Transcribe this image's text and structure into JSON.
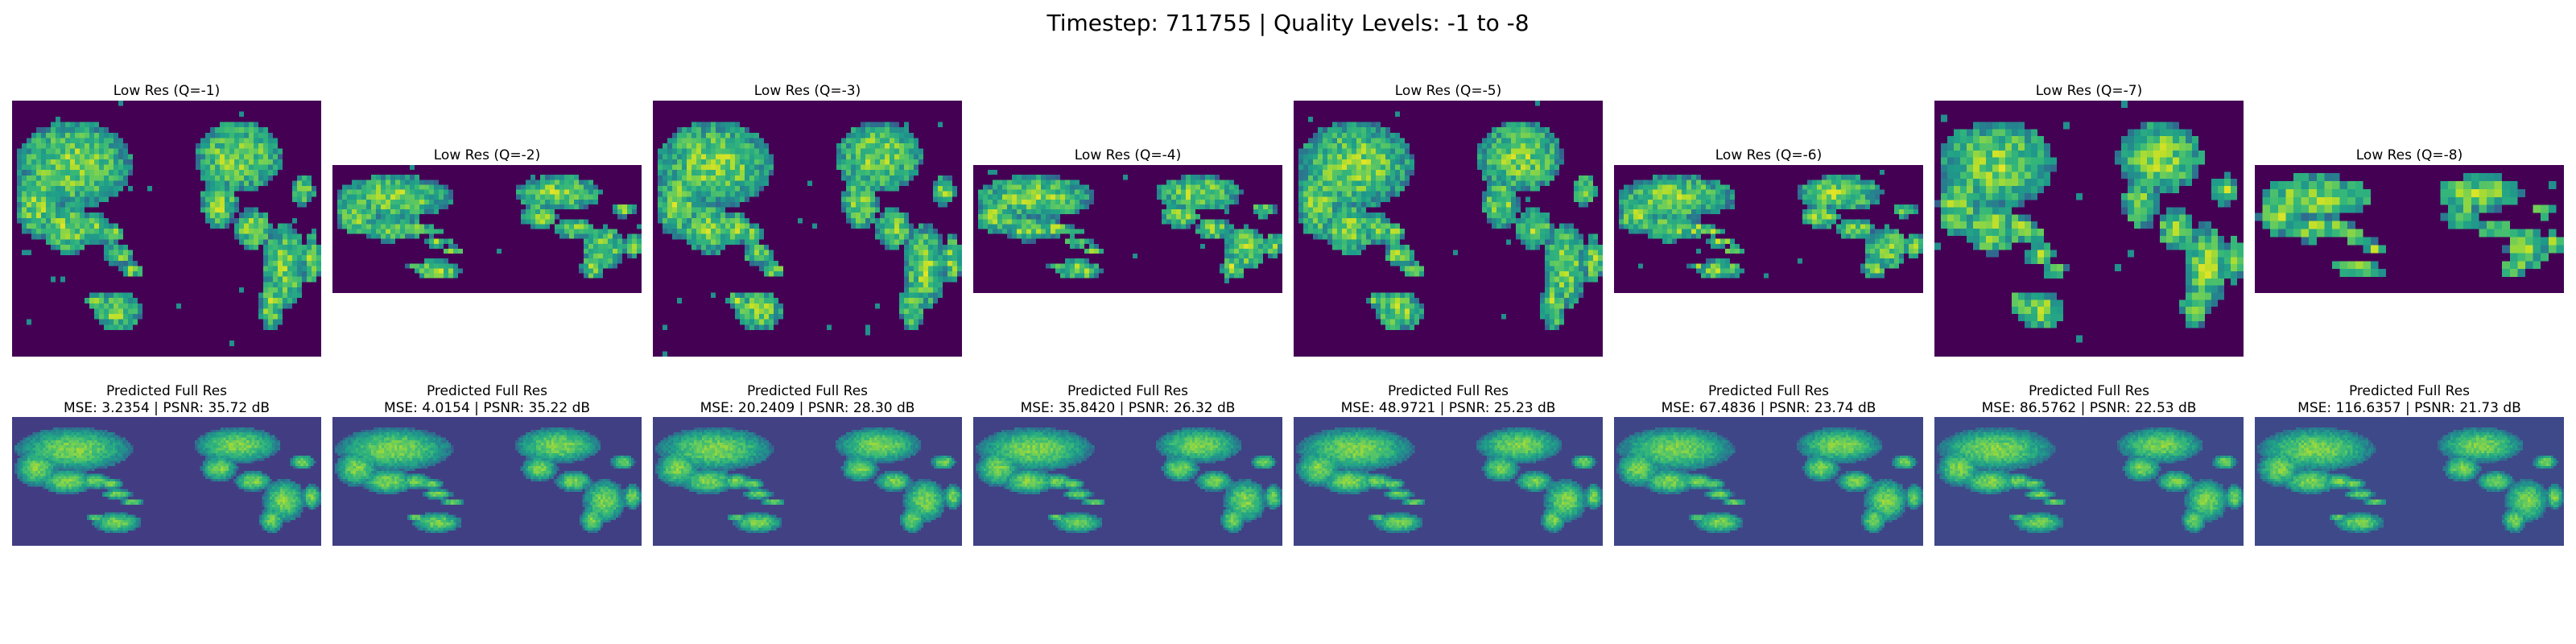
{
  "figure": {
    "title": "Timestep: 711755 | Quality Levels: -1 to -8",
    "colormap": "viridis",
    "background": "#ffffff"
  },
  "panels": [
    {
      "row": "low_res",
      "title": "Low Res (Q=-1)",
      "quality": -1,
      "grid": [
        64,
        48
      ]
    },
    {
      "row": "low_res",
      "title": "Low Res (Q=-2)",
      "quality": -2,
      "grid": [
        64,
        26
      ]
    },
    {
      "row": "low_res",
      "title": "Low Res (Q=-3)",
      "quality": -3,
      "grid": [
        64,
        48
      ]
    },
    {
      "row": "low_res",
      "title": "Low Res (Q=-4)",
      "quality": -4,
      "grid": [
        64,
        26
      ]
    },
    {
      "row": "low_res",
      "title": "Low Res (Q=-5)",
      "quality": -5,
      "grid": [
        64,
        48
      ]
    },
    {
      "row": "low_res",
      "title": "Low Res (Q=-6)",
      "quality": -6,
      "grid": [
        64,
        26
      ]
    },
    {
      "row": "low_res",
      "title": "Low Res (Q=-7)",
      "quality": -7,
      "grid": [
        48,
        36
      ]
    },
    {
      "row": "low_res",
      "title": "Low Res (Q=-8)",
      "quality": -8,
      "grid": [
        40,
        16
      ]
    },
    {
      "row": "predicted",
      "title": "Predicted Full Res",
      "metrics": "MSE: 3.2354 | PSNR: 35.72 dB",
      "grid": [
        120,
        50
      ]
    },
    {
      "row": "predicted",
      "title": "Predicted Full Res",
      "metrics": "MSE: 4.0154 | PSNR: 35.22 dB",
      "grid": [
        120,
        50
      ]
    },
    {
      "row": "predicted",
      "title": "Predicted Full Res",
      "metrics": "MSE: 20.2409 | PSNR: 28.30 dB",
      "grid": [
        120,
        50
      ]
    },
    {
      "row": "predicted",
      "title": "Predicted Full Res",
      "metrics": "MSE: 35.8420 | PSNR: 26.32 dB",
      "grid": [
        120,
        50
      ]
    },
    {
      "row": "predicted",
      "title": "Predicted Full Res",
      "metrics": "MSE: 48.9721 | PSNR: 25.23 dB",
      "grid": [
        120,
        50
      ]
    },
    {
      "row": "predicted",
      "title": "Predicted Full Res",
      "metrics": "MSE: 67.4836 | PSNR: 23.74 dB",
      "grid": [
        120,
        50
      ]
    },
    {
      "row": "predicted",
      "title": "Predicted Full Res",
      "metrics": "MSE: 86.5762 | PSNR: 22.53 dB",
      "grid": [
        120,
        50
      ]
    },
    {
      "row": "predicted",
      "title": "Predicted Full Res",
      "metrics": "MSE: 116.6357 | PSNR: 21.73 dB",
      "grid": [
        120,
        50
      ]
    }
  ]
}
